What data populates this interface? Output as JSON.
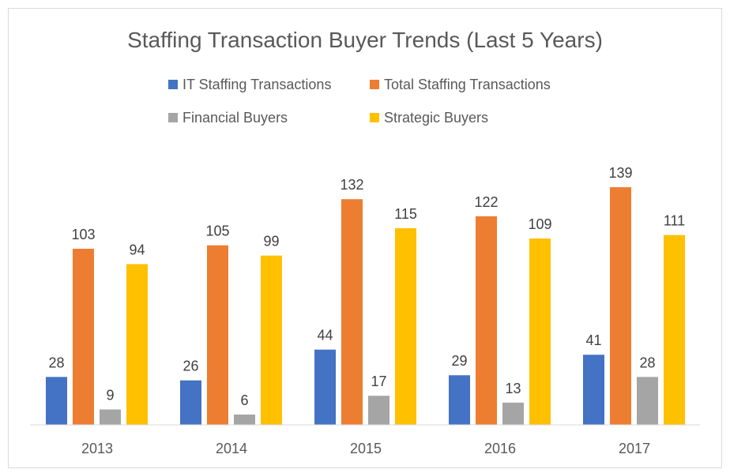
{
  "chart_data": {
    "type": "bar",
    "title": "Staffing Transaction Buyer Trends (Last 5 Years)",
    "categories": [
      "2013",
      "2014",
      "2015",
      "2016",
      "2017"
    ],
    "series": [
      {
        "name": "IT Staffing Transactions",
        "color": "#4472c4",
        "values": [
          28,
          26,
          44,
          29,
          41
        ]
      },
      {
        "name": "Total Staffing Transactions",
        "color": "#ed7d31",
        "values": [
          103,
          105,
          132,
          122,
          139
        ]
      },
      {
        "name": "Financial Buyers",
        "color": "#a5a5a5",
        "values": [
          9,
          6,
          17,
          13,
          28
        ]
      },
      {
        "name": "Strategic Buyers",
        "color": "#ffc000",
        "values": [
          94,
          99,
          115,
          109,
          111
        ]
      }
    ],
    "ylim": [
      0,
      160
    ],
    "grid": false,
    "legend_position": "top",
    "data_labels": true
  }
}
